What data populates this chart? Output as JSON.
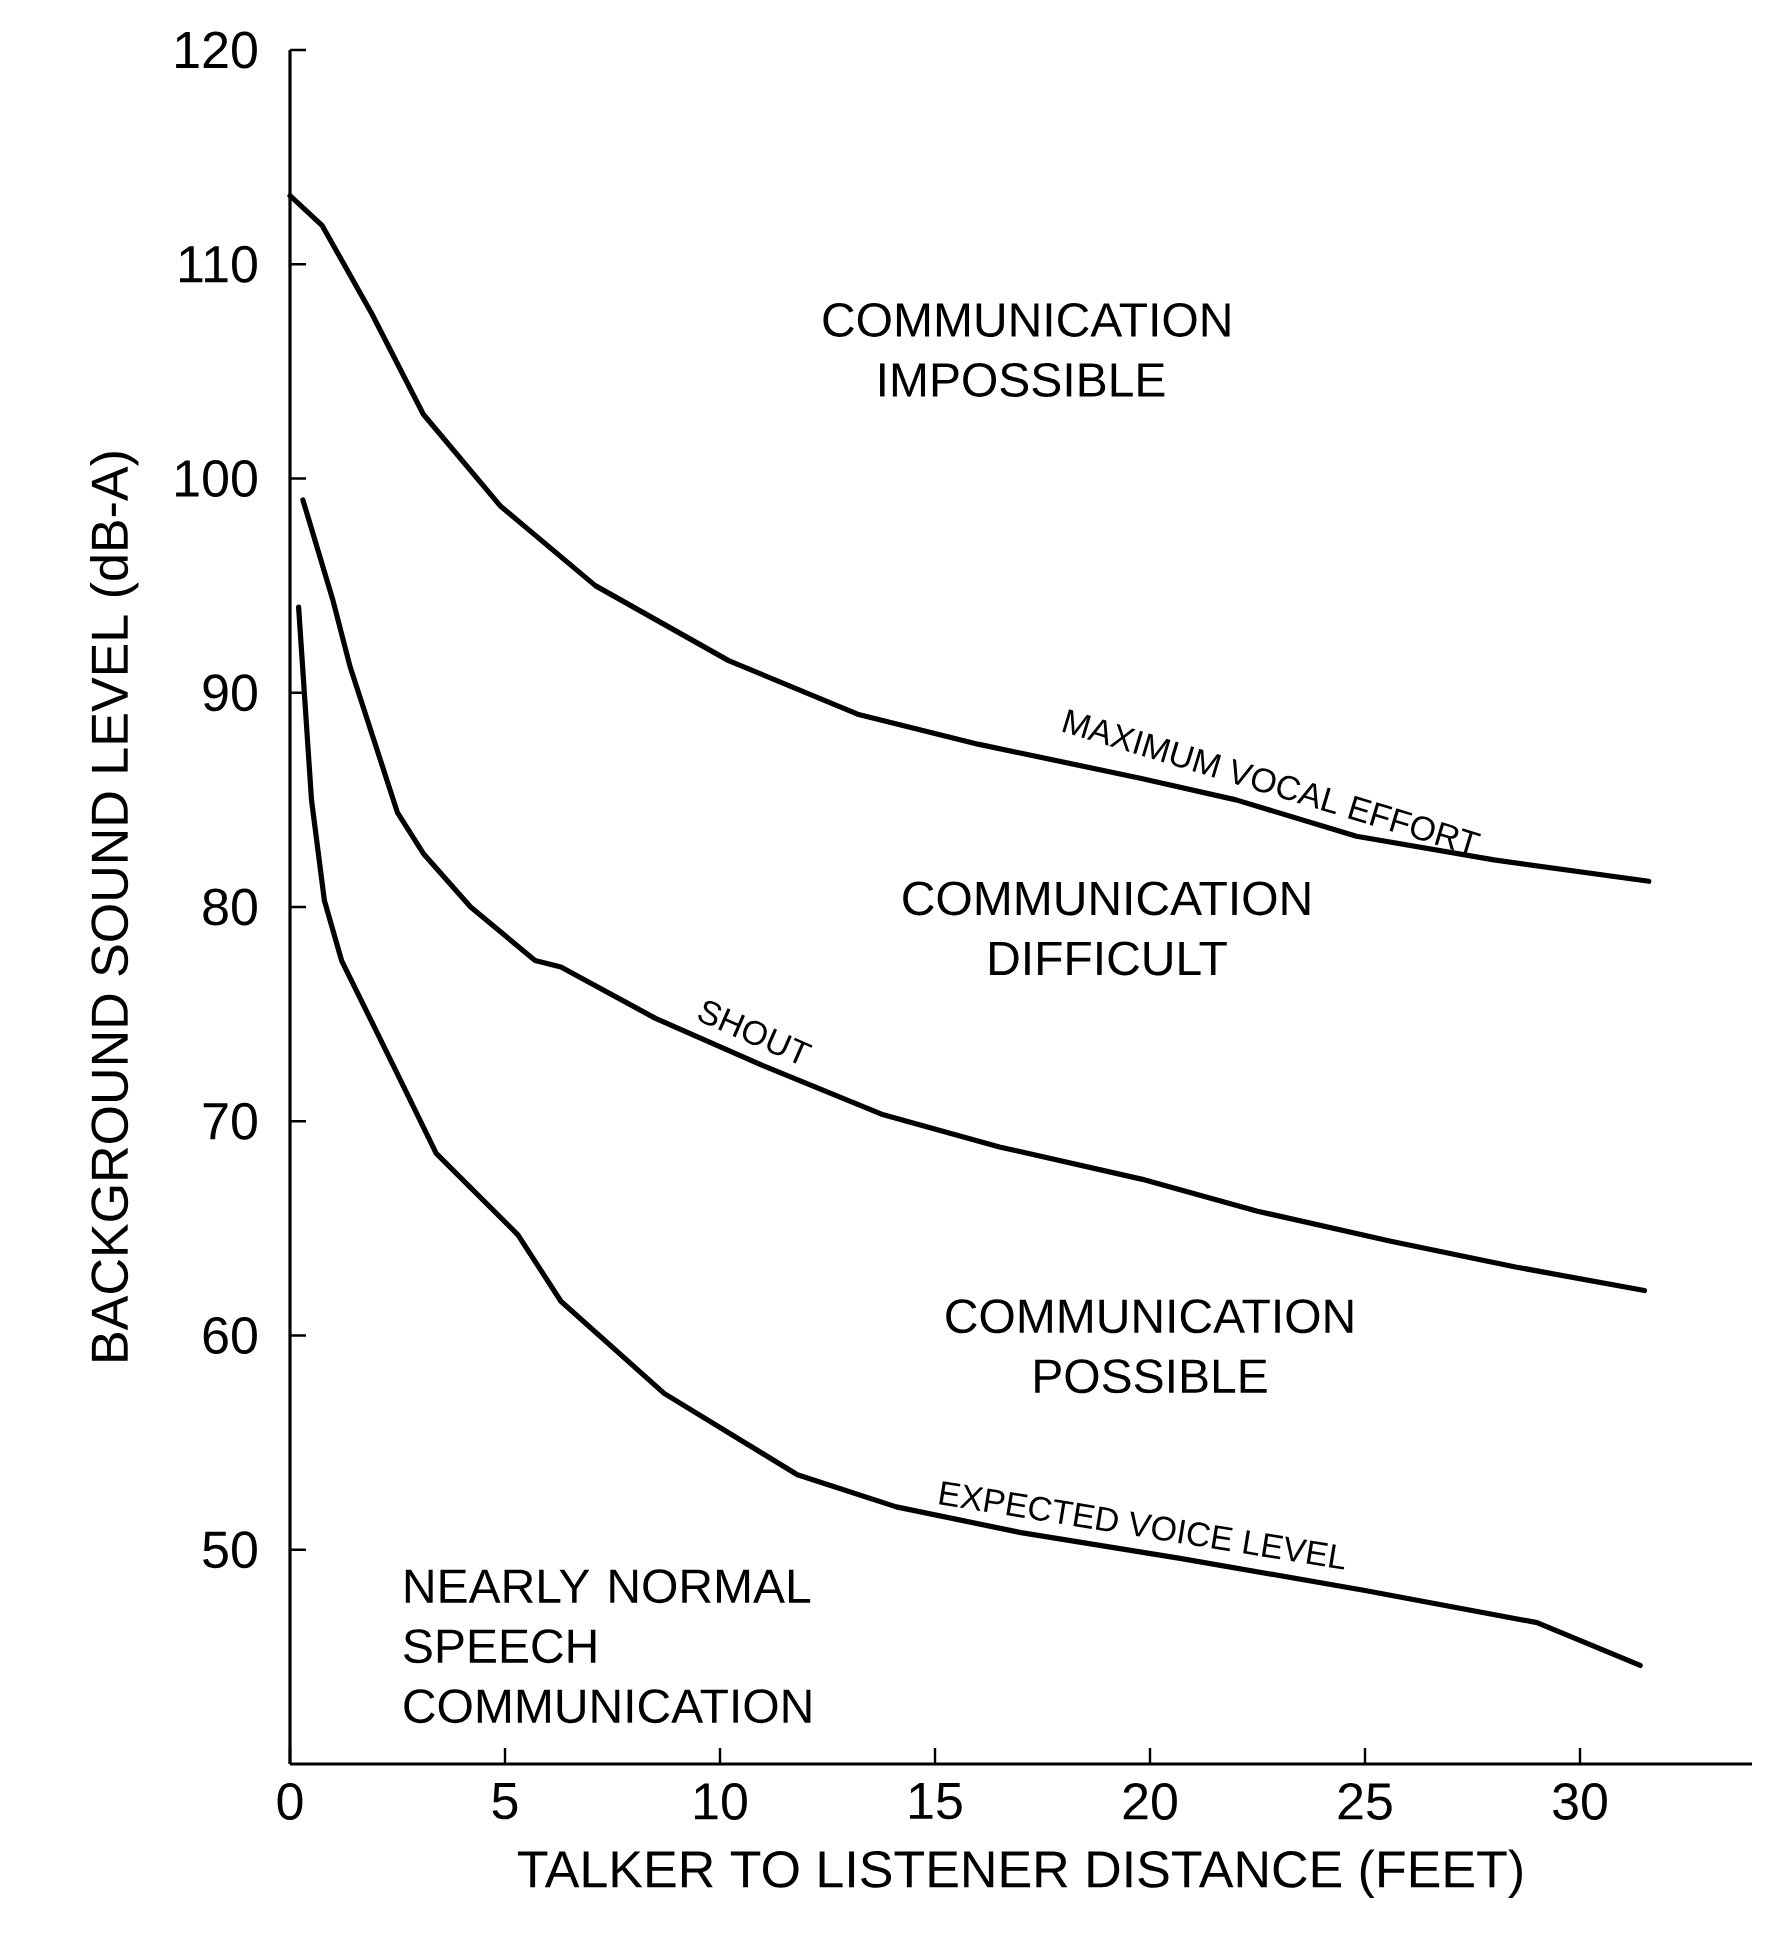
{
  "chart_data": {
    "type": "line",
    "xlabel": "TALKER TO LISTENER DISTANCE (FEET)",
    "ylabel": "BACKGROUND SOUND LEVEL    (dB-A)",
    "xlim": [
      0,
      34
    ],
    "ylim": [
      40,
      120
    ],
    "xticks": [
      0,
      5,
      10,
      15,
      20,
      25,
      30
    ],
    "yticks": [
      50,
      60,
      70,
      80,
      90,
      100,
      110,
      120
    ],
    "grid": false,
    "legend": false,
    "marker": "none",
    "line_style": "solid",
    "series": [
      {
        "name": "MAXIMUM VOCAL EFFORT",
        "color": "#000000",
        "x": [
          0,
          0.75,
          1.9,
          3.1,
          4.9,
          7.1,
          10.2,
          13.2,
          16,
          19.8,
          22,
          24.8,
          28,
          31.6
        ],
        "values": [
          113.2,
          111.8,
          107.7,
          103,
          98.7,
          95,
          91.5,
          89,
          87.6,
          86,
          85,
          83.3,
          82.2,
          81.2
        ]
      },
      {
        "name": "SHOUT",
        "color": "#000000",
        "x": [
          0.3,
          1,
          1.4,
          2.5,
          3.1,
          4.2,
          5.7,
          6.3,
          8.5,
          11,
          13.8,
          16.5,
          19.8,
          22.5,
          25.6,
          28.5,
          31.5
        ],
        "values": [
          99,
          94.3,
          91.2,
          84.4,
          82.5,
          80,
          77.5,
          77.2,
          74.8,
          72.6,
          70.3,
          68.8,
          67.3,
          65.8,
          64.4,
          63.2,
          62.1
        ]
      },
      {
        "name": "EXPECTED VOICE LEVEL",
        "color": "#000000",
        "x": [
          0.2,
          0.5,
          0.8,
          1.2,
          2.5,
          3.4,
          5.3,
          6.3,
          8.7,
          11.8,
          14.1,
          17,
          20.7,
          25,
          29,
          31.4
        ],
        "values": [
          94,
          85,
          80.3,
          77.5,
          72.2,
          68.5,
          64.7,
          61.6,
          57.3,
          53.5,
          52,
          50.8,
          49.6,
          48.1,
          46.6,
          44.6
        ]
      }
    ],
    "annotations": [
      "COMMUNICATION IMPOSSIBLE",
      "COMMUNICATION DIFFICULT",
      "COMMUNICATION POSSIBLE",
      "NEARLY NORMAL SPEECH COMMUNICATION"
    ]
  }
}
